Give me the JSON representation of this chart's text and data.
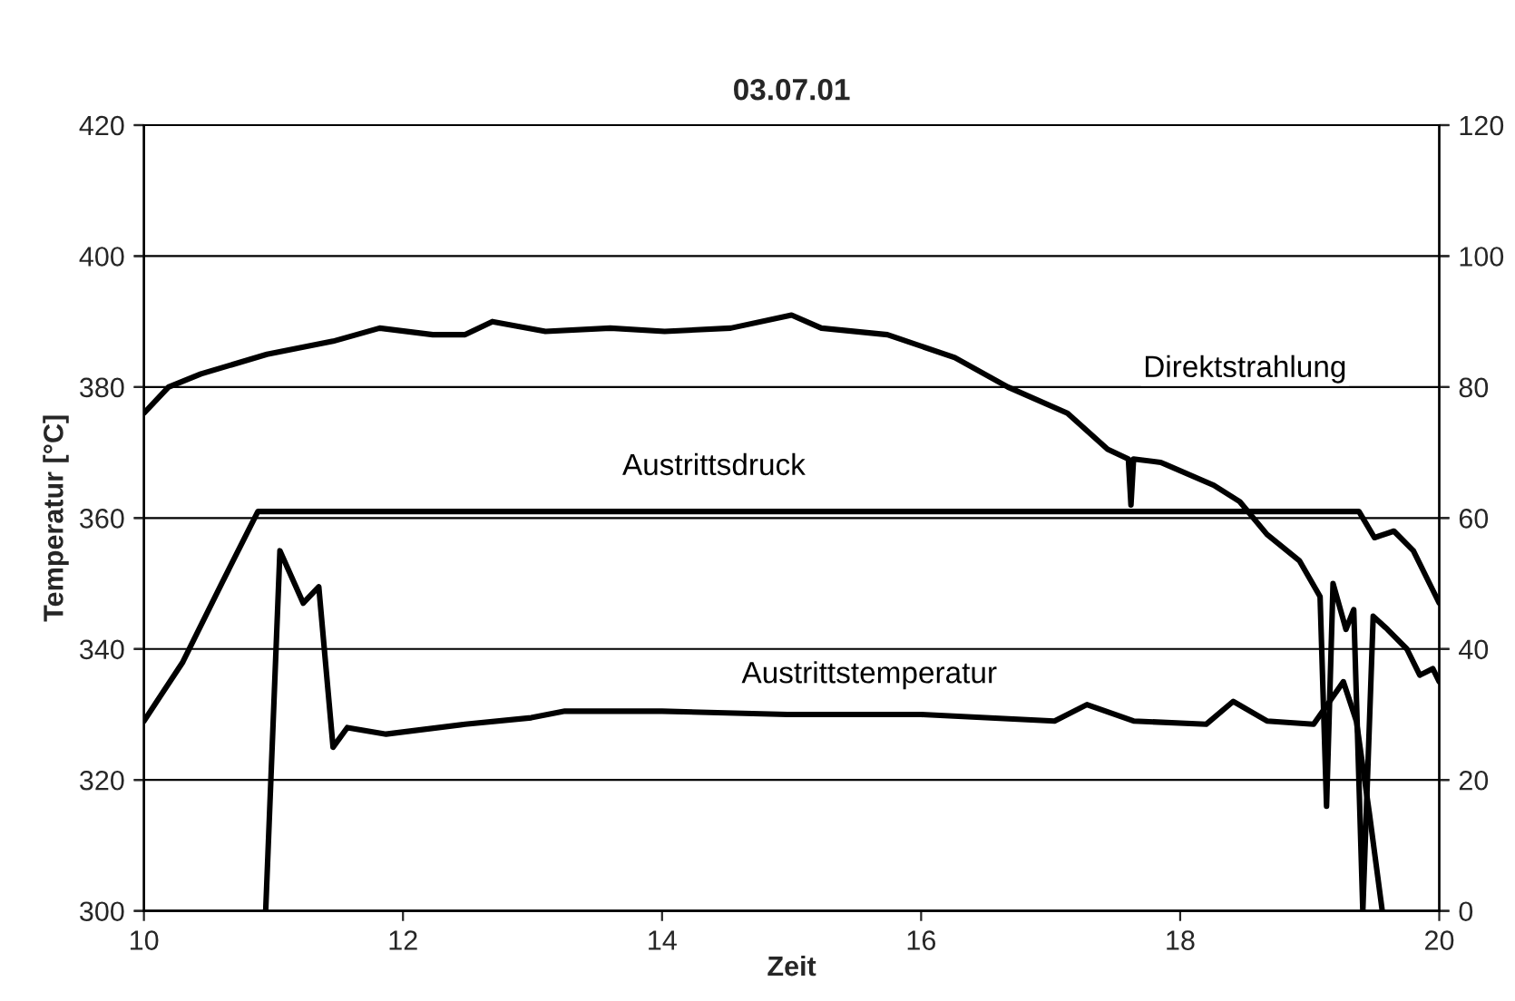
{
  "chart_data": {
    "type": "line",
    "title": "03.07.01",
    "xlabel": "Zeit",
    "ylabel": "Temperatur [°C]",
    "xlim": [
      10,
      20
    ],
    "xticks": [
      10,
      12,
      14,
      16,
      18,
      20
    ],
    "ylim": [
      300,
      420
    ],
    "yticks": [
      300,
      320,
      340,
      360,
      380,
      400,
      420
    ],
    "y2lim": [
      0,
      120
    ],
    "y2ticks": [
      0,
      20,
      40,
      60,
      80,
      100,
      120
    ],
    "grid": "y",
    "marker": "none",
    "line_style": "solid",
    "series": [
      {
        "name": "Direktstrahlung",
        "color": "#000000",
        "axis": "y2",
        "x": [
          10,
          10.19,
          10.44,
          10.95,
          11.46,
          11.82,
          12.23,
          12.48,
          12.69,
          13.1,
          13.6,
          14.02,
          14.53,
          15.0,
          15.23,
          15.74,
          16.26,
          16.67,
          17.13,
          17.44,
          17.6,
          17.62,
          17.64,
          17.85,
          18.26,
          18.46,
          18.67,
          18.92,
          19.08,
          19.13,
          19.18,
          19.28,
          19.34,
          19.41,
          19.49,
          19.6,
          19.75,
          19.85,
          19.95,
          20
        ],
        "values": [
          76,
          80,
          82,
          85,
          87,
          89,
          88,
          88,
          90,
          88.5,
          89,
          88.5,
          89,
          91,
          89,
          88,
          84.5,
          80,
          76,
          70.5,
          69,
          62,
          69,
          68.5,
          65,
          62.5,
          57.5,
          53.5,
          48,
          16,
          50,
          43,
          46,
          0,
          45,
          43,
          40,
          36,
          37,
          35
        ]
      },
      {
        "name": "Austrittsdruck",
        "color": "#000000",
        "axis": "y2",
        "x": [
          10,
          10.3,
          10.6,
          10.88,
          12,
          14,
          16,
          18,
          19.38,
          19.5,
          19.65,
          19.8,
          19.95,
          20
        ],
        "values": [
          29,
          38,
          50,
          61,
          61,
          61,
          61,
          61,
          61,
          57,
          58,
          55,
          49,
          47
        ]
      },
      {
        "name": "Austrittstemperatur",
        "color": "#000000",
        "x": [
          10.94,
          11.05,
          11.23,
          11.35,
          11.46,
          11.57,
          11.87,
          12.48,
          12.99,
          13.25,
          14.0,
          14.97,
          16.0,
          17.03,
          17.28,
          17.64,
          18.2,
          18.41,
          18.67,
          19.03,
          19.26,
          19.36,
          19.46,
          19.56
        ],
        "values": [
          300,
          355,
          347,
          349.5,
          325,
          328,
          327,
          328.5,
          329.5,
          330.5,
          330.5,
          330,
          330,
          329,
          331.5,
          329,
          328.5,
          332,
          329,
          328.5,
          335,
          329,
          315,
          300
        ]
      }
    ]
  }
}
